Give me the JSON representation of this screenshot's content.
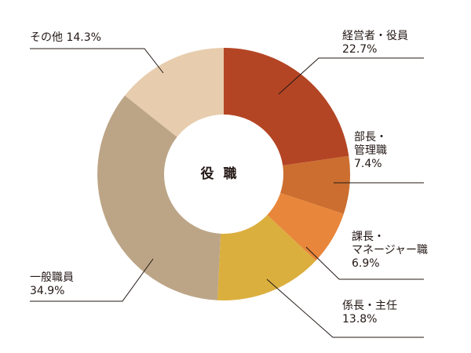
{
  "chart_data": {
    "type": "pie",
    "donut": true,
    "center_label": "役 職",
    "series": [
      {
        "categories": [
          "経営者・役員",
          "部長・管理職",
          "課長・マネージャー職",
          "係長・主任",
          "一般職員",
          "その他"
        ],
        "values": [
          22.7,
          7.4,
          6.9,
          13.8,
          34.9,
          14.3
        ]
      }
    ],
    "slices": [
      {
        "label_lines": [
          "経営者・役員"
        ],
        "value_text": "22.7%",
        "value": 22.7,
        "color": "#B44524"
      },
      {
        "label_lines": [
          "部長・",
          "管理職"
        ],
        "value_text": "7.4%",
        "value": 7.4,
        "color": "#CB6E30"
      },
      {
        "label_lines": [
          "課長・",
          "マネージャー職"
        ],
        "value_text": "6.9%",
        "value": 6.9,
        "color": "#E8863B"
      },
      {
        "label_lines": [
          "係長・主任"
        ],
        "value_text": "13.8%",
        "value": 13.8,
        "color": "#DBAF3E"
      },
      {
        "label_lines": [
          "一般職員"
        ],
        "value_text": "34.9%",
        "value": 34.9,
        "color": "#BCA586"
      },
      {
        "label_lines": [
          "その他"
        ],
        "value_text": "14.3%",
        "value": 14.3,
        "color": "#E7CDAE"
      }
    ],
    "leader_color": "#231815"
  }
}
